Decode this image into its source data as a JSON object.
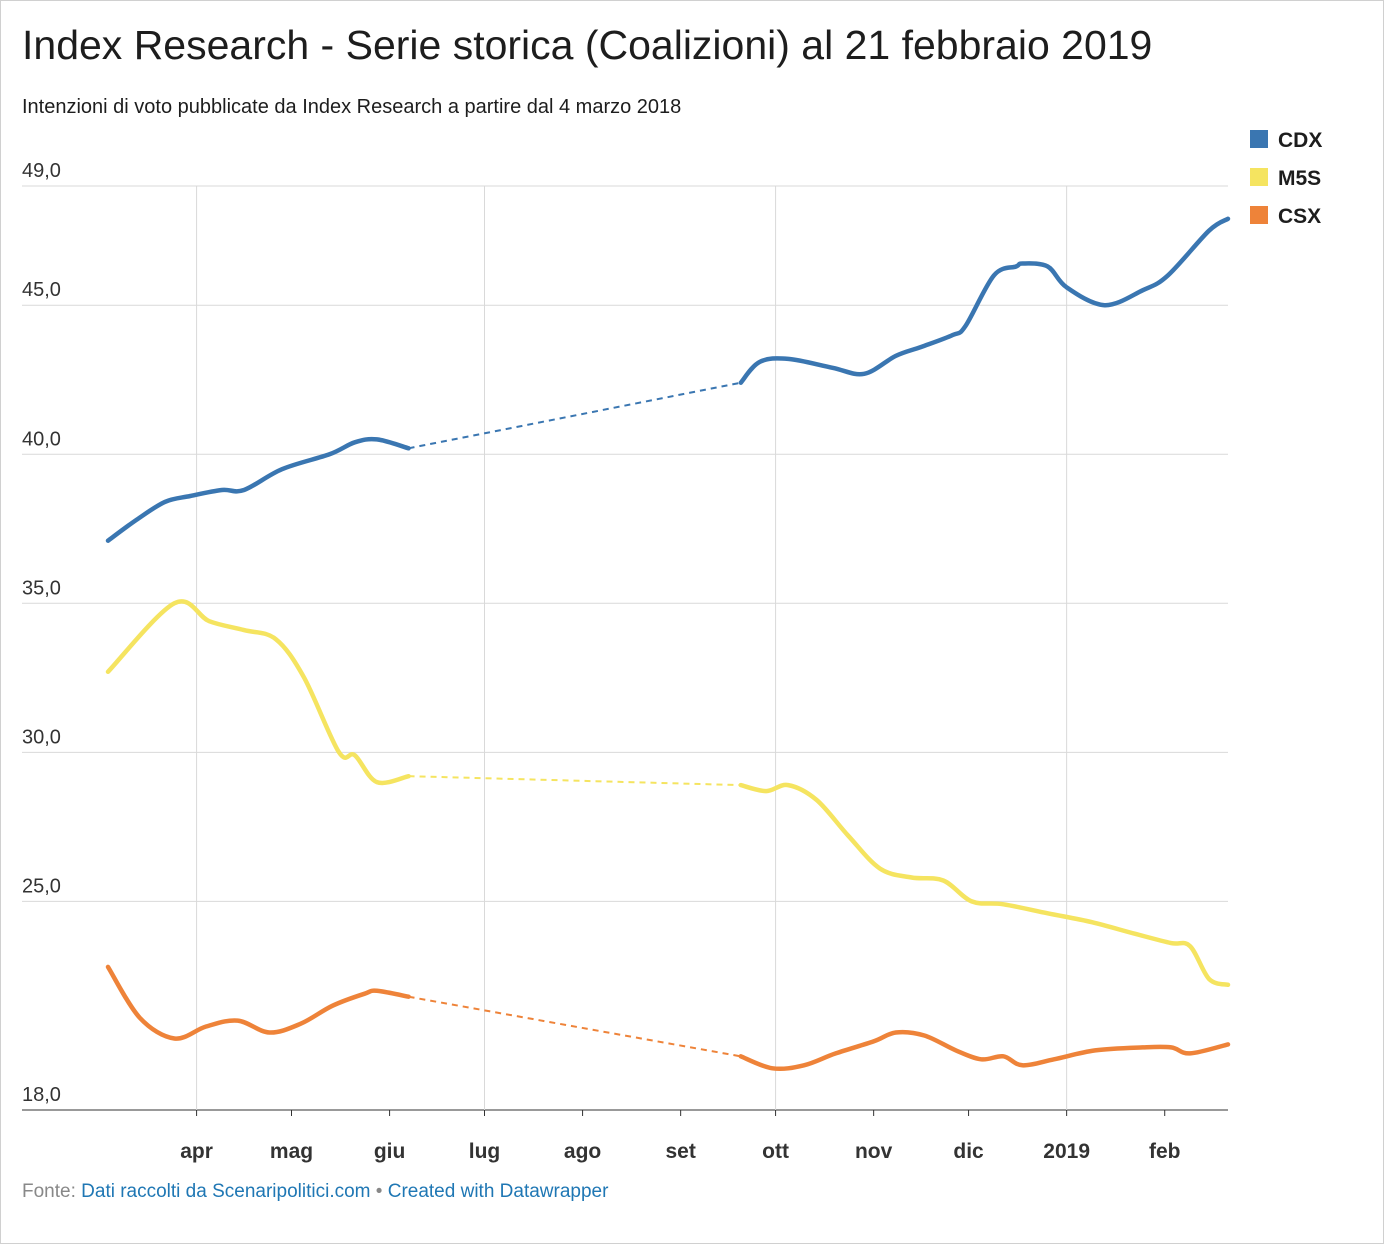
{
  "title": "Index Research - Serie storica (Coalizioni) al 21 febbraio 2019",
  "subtitle": "Intenzioni di voto pubblicate da Index Research a partire dal 4 marzo 2018",
  "footer": {
    "prefix": "Fonte:",
    "source_link": "Dati raccolti da Scenaripolitici.com",
    "separator": "•",
    "credit_link": "Created with Datawrapper"
  },
  "chart_data": {
    "type": "line",
    "ylim": [
      18,
      49
    ],
    "y_ticks": [
      18,
      25,
      30,
      35,
      40,
      45,
      49
    ],
    "y_tick_labels": [
      "18,0",
      "25,0",
      "30,0",
      "35,0",
      "40,0",
      "45,0",
      "49,0"
    ],
    "x_range": [
      "2018-03-04",
      "2019-02-21"
    ],
    "x_ticks": [
      {
        "date": "2018-04-01",
        "label": "apr",
        "grid": true
      },
      {
        "date": "2018-05-01",
        "label": "mag",
        "grid": false
      },
      {
        "date": "2018-06-01",
        "label": "giu",
        "grid": false
      },
      {
        "date": "2018-07-01",
        "label": "lug",
        "grid": true
      },
      {
        "date": "2018-08-01",
        "label": "ago",
        "grid": false
      },
      {
        "date": "2018-09-01",
        "label": "set",
        "grid": false
      },
      {
        "date": "2018-10-01",
        "label": "ott",
        "grid": true
      },
      {
        "date": "2018-11-01",
        "label": "nov",
        "grid": false
      },
      {
        "date": "2018-12-01",
        "label": "dic",
        "grid": false
      },
      {
        "date": "2019-01-01",
        "label": "2019",
        "grid": true
      },
      {
        "date": "2019-02-01",
        "label": "feb",
        "grid": false
      }
    ],
    "grid": true,
    "legend_position": "top-right",
    "series": [
      {
        "name": "CDX",
        "color": "#3a76b1",
        "segments": [
          [
            [
              "2018-03-04",
              37.1
            ],
            [
              "2018-03-13",
              37.8
            ],
            [
              "2018-03-22",
              38.4
            ],
            [
              "2018-03-30",
              38.6
            ],
            [
              "2018-04-09",
              38.8
            ],
            [
              "2018-04-16",
              38.8
            ],
            [
              "2018-04-28",
              39.5
            ],
            [
              "2018-05-13",
              40.0
            ],
            [
              "2018-05-21",
              40.4
            ],
            [
              "2018-05-28",
              40.5
            ],
            [
              "2018-06-07",
              40.2
            ]
          ]
        ],
        "gaps": [
          [
            [
              "2018-06-07",
              40.2
            ],
            [
              "2018-09-20",
              42.4
            ]
          ]
        ],
        "segments2": [
          [
            [
              "2018-09-20",
              42.4
            ],
            [
              "2018-09-26",
              43.1
            ],
            [
              "2018-10-05",
              43.2
            ],
            [
              "2018-10-19",
              42.9
            ],
            [
              "2018-10-29",
              42.7
            ],
            [
              "2018-11-08",
              43.3
            ],
            [
              "2018-11-16",
              43.6
            ],
            [
              "2018-11-26",
              44.0
            ],
            [
              "2018-11-30",
              44.3
            ],
            [
              "2018-12-09",
              46.0
            ],
            [
              "2018-12-16",
              46.3
            ],
            [
              "2018-12-18",
              46.4
            ],
            [
              "2018-12-26",
              46.3
            ],
            [
              "2019-01-01",
              45.6
            ],
            [
              "2019-01-13",
              45.0
            ],
            [
              "2019-01-25",
              45.5
            ],
            [
              "2019-02-02",
              46.0
            ],
            [
              "2019-02-15",
              47.5
            ],
            [
              "2019-02-21",
              47.9
            ]
          ]
        ]
      },
      {
        "name": "M5S",
        "color": "#f5e460",
        "segments": [
          [
            [
              "2018-03-04",
              32.7
            ],
            [
              "2018-03-25",
              35.0
            ],
            [
              "2018-04-05",
              34.4
            ],
            [
              "2018-04-16",
              34.1
            ],
            [
              "2018-04-26",
              33.8
            ],
            [
              "2018-05-05",
              32.5
            ],
            [
              "2018-05-16",
              30.0
            ],
            [
              "2018-05-21",
              29.9
            ],
            [
              "2018-05-28",
              29.0
            ],
            [
              "2018-06-07",
              29.2
            ]
          ]
        ],
        "gaps": [
          [
            [
              "2018-06-07",
              29.2
            ],
            [
              "2018-09-20",
              28.9
            ]
          ]
        ],
        "segments2": [
          [
            [
              "2018-09-20",
              28.9
            ],
            [
              "2018-09-28",
              28.7
            ],
            [
              "2018-10-05",
              28.9
            ],
            [
              "2018-10-14",
              28.4
            ],
            [
              "2018-10-24",
              27.2
            ],
            [
              "2018-11-03",
              26.1
            ],
            [
              "2018-11-13",
              25.8
            ],
            [
              "2018-11-23",
              25.7
            ],
            [
              "2018-12-02",
              25.0
            ],
            [
              "2018-12-12",
              24.9
            ],
            [
              "2018-12-26",
              24.6
            ],
            [
              "2019-01-09",
              24.3
            ],
            [
              "2019-01-23",
              23.9
            ],
            [
              "2019-02-03",
              23.6
            ],
            [
              "2019-02-09",
              23.5
            ],
            [
              "2019-02-15",
              22.4
            ],
            [
              "2019-02-21",
              22.2
            ]
          ]
        ]
      },
      {
        "name": "CSX",
        "color": "#ee8339",
        "segments": [
          [
            [
              "2018-03-04",
              22.8
            ],
            [
              "2018-03-14",
              21.1
            ],
            [
              "2018-03-25",
              20.4
            ],
            [
              "2018-04-04",
              20.8
            ],
            [
              "2018-04-14",
              21.0
            ],
            [
              "2018-04-24",
              20.6
            ],
            [
              "2018-05-04",
              20.9
            ],
            [
              "2018-05-14",
              21.5
            ],
            [
              "2018-05-24",
              21.9
            ],
            [
              "2018-05-28",
              22.0
            ],
            [
              "2018-06-07",
              21.8
            ]
          ]
        ],
        "gaps": [
          [
            [
              "2018-06-07",
              21.8
            ],
            [
              "2018-09-20",
              19.8
            ]
          ]
        ],
        "segments2": [
          [
            [
              "2018-09-20",
              19.8
            ],
            [
              "2018-09-30",
              19.4
            ],
            [
              "2018-10-10",
              19.5
            ],
            [
              "2018-10-20",
              19.9
            ],
            [
              "2018-11-01",
              20.3
            ],
            [
              "2018-11-08",
              20.6
            ],
            [
              "2018-11-17",
              20.5
            ],
            [
              "2018-11-27",
              20.0
            ],
            [
              "2018-12-05",
              19.7
            ],
            [
              "2018-12-12",
              19.8
            ],
            [
              "2018-12-18",
              19.5
            ],
            [
              "2018-12-28",
              19.7
            ],
            [
              "2019-01-10",
              20.0
            ],
            [
              "2019-01-25",
              20.1
            ],
            [
              "2019-02-03",
              20.1
            ],
            [
              "2019-02-09",
              19.9
            ],
            [
              "2019-02-21",
              20.2
            ]
          ]
        ]
      }
    ]
  }
}
